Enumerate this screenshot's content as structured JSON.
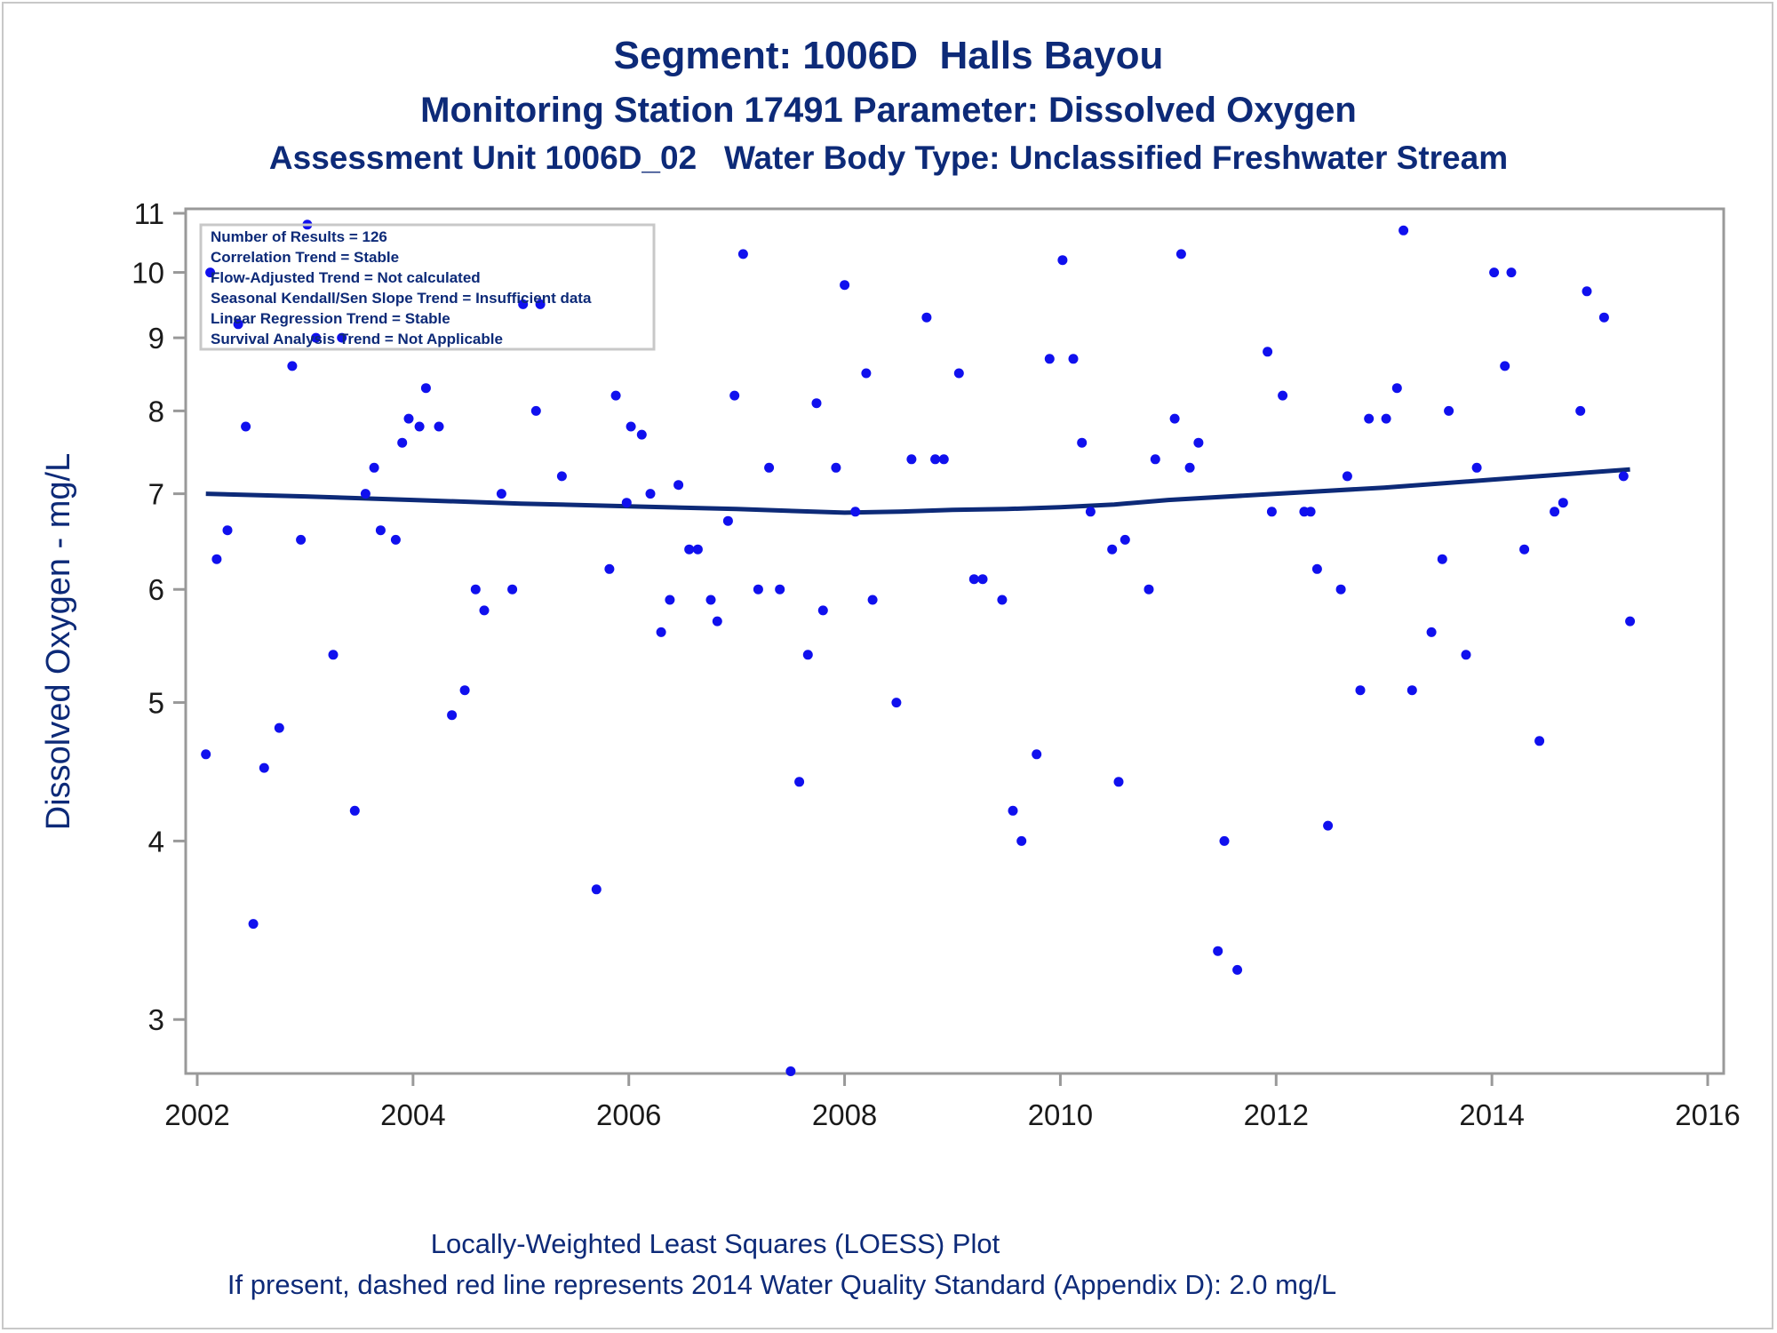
{
  "title": "Segment: 1006D  Halls Bayou",
  "subtitle": "Monitoring Station 17491 Parameter: Dissolved Oxygen",
  "subtitle2": "Assessment Unit 1006D_02   Water Body Type: Unclassified Freshwater Stream",
  "footnote1": "Locally-Weighted Least Squares (LOESS) Plot",
  "footnote2": "If present, dashed red line represents 2014 Water Quality Standard (Appendix D): 2.0 mg/L",
  "colors": {
    "text": "#0d2a78",
    "points": "#1010ee",
    "loess": "#0d2a78",
    "axis": "#999999"
  },
  "chart_data": {
    "type": "scatter",
    "ylabel": "Dissolved Oxygen - mg/L",
    "xlabel": "",
    "yscale": "log",
    "xlim": [
      2002,
      2016
    ],
    "ylim": [
      2.75,
      11.0
    ],
    "xticks": [
      2002,
      2004,
      2006,
      2008,
      2010,
      2012,
      2014,
      2016
    ],
    "yticks": [
      3,
      4,
      5,
      6,
      7,
      8,
      9,
      10,
      11
    ],
    "grid": false,
    "legend_position": "top-left",
    "stats_box": [
      "Number of Results = 126",
      "Correlation Trend = Stable",
      "Flow-Adjusted Trend = Not calculated",
      "Seasonal Kendall/Sen Slope Trend = Insufficient data",
      "Linear Regression Trend = Stable",
      "Survival Analysis Trend = Not Applicable"
    ],
    "points": [
      [
        2002.08,
        4.6
      ],
      [
        2002.12,
        10.0
      ],
      [
        2002.18,
        6.3
      ],
      [
        2002.28,
        6.6
      ],
      [
        2002.38,
        9.2
      ],
      [
        2002.45,
        7.8
      ],
      [
        2002.52,
        3.5
      ],
      [
        2002.62,
        4.5
      ],
      [
        2002.76,
        4.8
      ],
      [
        2002.88,
        8.6
      ],
      [
        2002.96,
        6.5
      ],
      [
        2003.02,
        10.8
      ],
      [
        2003.1,
        9.0
      ],
      [
        2003.26,
        5.4
      ],
      [
        2003.34,
        9.0
      ],
      [
        2003.46,
        4.2
      ],
      [
        2003.56,
        7.0
      ],
      [
        2003.64,
        7.3
      ],
      [
        2003.7,
        6.6
      ],
      [
        2003.84,
        6.5
      ],
      [
        2003.9,
        7.6
      ],
      [
        2003.96,
        7.9
      ],
      [
        2004.06,
        7.8
      ],
      [
        2004.12,
        8.3
      ],
      [
        2004.24,
        7.8
      ],
      [
        2004.36,
        4.9
      ],
      [
        2004.48,
        5.1
      ],
      [
        2004.58,
        6.0
      ],
      [
        2004.66,
        5.8
      ],
      [
        2004.82,
        7.0
      ],
      [
        2004.92,
        6.0
      ],
      [
        2005.02,
        9.5
      ],
      [
        2005.14,
        8.0
      ],
      [
        2005.18,
        9.5
      ],
      [
        2005.38,
        7.2
      ],
      [
        2005.7,
        3.7
      ],
      [
        2005.82,
        6.2
      ],
      [
        2005.88,
        8.2
      ],
      [
        2005.98,
        6.9
      ],
      [
        2006.02,
        7.8
      ],
      [
        2006.12,
        7.7
      ],
      [
        2006.2,
        7.0
      ],
      [
        2006.3,
        5.6
      ],
      [
        2006.38,
        5.9
      ],
      [
        2006.46,
        7.1
      ],
      [
        2006.56,
        6.4
      ],
      [
        2006.64,
        6.4
      ],
      [
        2006.76,
        5.9
      ],
      [
        2006.82,
        5.7
      ],
      [
        2006.92,
        6.7
      ],
      [
        2006.98,
        8.2
      ],
      [
        2007.06,
        10.3
      ],
      [
        2007.2,
        6.0
      ],
      [
        2007.3,
        7.3
      ],
      [
        2007.4,
        6.0
      ],
      [
        2007.5,
        2.76
      ],
      [
        2007.58,
        4.4
      ],
      [
        2007.66,
        5.4
      ],
      [
        2007.74,
        8.1
      ],
      [
        2007.8,
        5.8
      ],
      [
        2007.92,
        7.3
      ],
      [
        2008.0,
        9.8
      ],
      [
        2008.1,
        6.8
      ],
      [
        2008.2,
        8.5
      ],
      [
        2008.26,
        5.9
      ],
      [
        2008.48,
        5.0
      ],
      [
        2008.62,
        7.4
      ],
      [
        2008.76,
        9.3
      ],
      [
        2008.84,
        7.4
      ],
      [
        2008.92,
        7.4
      ],
      [
        2009.06,
        8.5
      ],
      [
        2009.2,
        6.1
      ],
      [
        2009.28,
        6.1
      ],
      [
        2009.46,
        5.9
      ],
      [
        2009.56,
        4.2
      ],
      [
        2009.64,
        4.0
      ],
      [
        2009.78,
        4.6
      ],
      [
        2009.9,
        8.7
      ],
      [
        2010.02,
        10.2
      ],
      [
        2010.12,
        8.7
      ],
      [
        2010.2,
        7.6
      ],
      [
        2010.28,
        6.8
      ],
      [
        2010.48,
        6.4
      ],
      [
        2010.54,
        4.4
      ],
      [
        2010.6,
        6.5
      ],
      [
        2010.82,
        6.0
      ],
      [
        2010.88,
        7.4
      ],
      [
        2011.06,
        7.9
      ],
      [
        2011.12,
        10.3
      ],
      [
        2011.2,
        7.3
      ],
      [
        2011.28,
        7.6
      ],
      [
        2011.46,
        3.35
      ],
      [
        2011.52,
        4.0
      ],
      [
        2011.64,
        3.25
      ],
      [
        2011.92,
        8.8
      ],
      [
        2011.96,
        6.8
      ],
      [
        2012.06,
        8.2
      ],
      [
        2012.26,
        6.8
      ],
      [
        2012.32,
        6.8
      ],
      [
        2012.38,
        6.2
      ],
      [
        2012.48,
        4.1
      ],
      [
        2012.6,
        6.0
      ],
      [
        2012.66,
        7.2
      ],
      [
        2012.78,
        5.1
      ],
      [
        2012.86,
        7.9
      ],
      [
        2013.02,
        7.9
      ],
      [
        2013.12,
        8.3
      ],
      [
        2013.18,
        10.7
      ],
      [
        2013.26,
        5.1
      ],
      [
        2013.44,
        5.6
      ],
      [
        2013.54,
        6.3
      ],
      [
        2013.6,
        8.0
      ],
      [
        2013.76,
        5.4
      ],
      [
        2013.86,
        7.3
      ],
      [
        2014.02,
        10.0
      ],
      [
        2014.12,
        8.6
      ],
      [
        2014.18,
        10.0
      ],
      [
        2014.3,
        6.4
      ],
      [
        2014.44,
        4.7
      ],
      [
        2014.58,
        6.8
      ],
      [
        2014.66,
        6.9
      ],
      [
        2014.82,
        8.0
      ],
      [
        2014.88,
        9.7
      ],
      [
        2015.04,
        9.3
      ],
      [
        2015.22,
        7.2
      ],
      [
        2015.28,
        5.7
      ]
    ],
    "loess": [
      [
        2002.08,
        7.0
      ],
      [
        2003.0,
        6.97
      ],
      [
        2004.0,
        6.93
      ],
      [
        2005.0,
        6.89
      ],
      [
        2006.0,
        6.86
      ],
      [
        2007.0,
        6.83
      ],
      [
        2008.0,
        6.79
      ],
      [
        2008.5,
        6.8
      ],
      [
        2009.0,
        6.82
      ],
      [
        2009.5,
        6.83
      ],
      [
        2010.0,
        6.85
      ],
      [
        2010.5,
        6.88
      ],
      [
        2011.0,
        6.93
      ],
      [
        2012.0,
        7.0
      ],
      [
        2013.0,
        7.07
      ],
      [
        2014.0,
        7.16
      ],
      [
        2015.28,
        7.28
      ]
    ]
  }
}
